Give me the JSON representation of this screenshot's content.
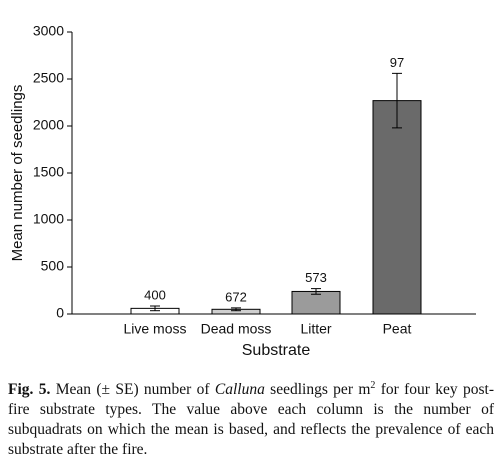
{
  "chart_data": {
    "type": "bar",
    "categories": [
      "Live moss",
      "Dead moss",
      "Litter",
      "Peat"
    ],
    "values": [
      60,
      50,
      240,
      2270
    ],
    "errors": [
      25,
      15,
      30,
      290
    ],
    "colors": [
      "#ffffff",
      "#cfcfcf",
      "#9b9b9b",
      "#6a6a6a"
    ],
    "bar_labels": [
      400,
      672,
      573,
      97
    ],
    "xlabel": "Substrate",
    "ylabel": "Mean number of seedlings",
    "ylim": [
      0,
      3000
    ],
    "yticks": [
      0,
      500,
      1000,
      1500,
      2000,
      2500,
      3000
    ],
    "grid": false
  },
  "caption": {
    "label": "Fig. 5.",
    "parts": [
      "Mean (± SE) number of ",
      "Calluna",
      " seedlings per m",
      "2",
      " for four key post-fire substrate types. The value above each column is the number of subquadrats on which the mean is based, and reflects the prevalence of each substrate after the fire."
    ]
  }
}
